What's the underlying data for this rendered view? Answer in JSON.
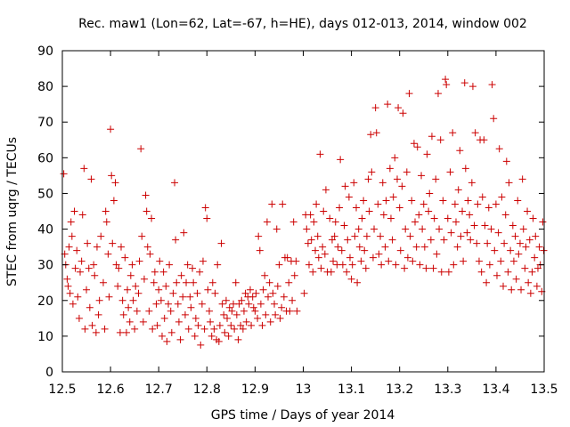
{
  "chart_data": {
    "type": "scatter",
    "title": "Rec. maw1 (Lon=62, Lat=-67, h=HE), days 012-013, 2014, window 002",
    "xlabel": "GPS time / Days of year 2014",
    "ylabel": "STEC from uqrg / TECUs",
    "xlim": [
      12.5,
      13.5
    ],
    "ylim": [
      0,
      90
    ],
    "xticks": [
      "12.5",
      "12.6",
      "12.7",
      "12.8",
      "12.9",
      "13",
      "13.1",
      "13.2",
      "13.3",
      "13.4",
      "13.5"
    ],
    "yticks": [
      "0",
      "10",
      "20",
      "30",
      "40",
      "50",
      "60",
      "70",
      "80",
      "90"
    ],
    "grid": false,
    "marker": "plus",
    "series_color": "#cc0000",
    "points": [
      [
        12.503,
        55.5
      ],
      [
        12.505,
        33
      ],
      [
        12.507,
        30
      ],
      [
        12.51,
        26
      ],
      [
        12.512,
        24
      ],
      [
        12.514,
        35
      ],
      [
        12.516,
        22
      ],
      [
        12.518,
        42
      ],
      [
        12.52,
        38
      ],
      [
        12.522,
        19
      ],
      [
        12.525,
        45
      ],
      [
        12.527,
        29
      ],
      [
        12.53,
        34
      ],
      [
        12.532,
        21
      ],
      [
        12.535,
        15
      ],
      [
        12.537,
        28
      ],
      [
        12.54,
        31
      ],
      [
        12.542,
        44
      ],
      [
        12.545,
        57
      ],
      [
        12.547,
        12
      ],
      [
        12.55,
        23
      ],
      [
        12.552,
        36
      ],
      [
        12.555,
        29
      ],
      [
        12.557,
        18
      ],
      [
        12.56,
        54
      ],
      [
        12.562,
        13
      ],
      [
        12.565,
        30
      ],
      [
        12.567,
        27
      ],
      [
        12.57,
        11
      ],
      [
        12.572,
        35
      ],
      [
        12.575,
        16
      ],
      [
        12.577,
        20
      ],
      [
        12.58,
        38
      ],
      [
        12.585,
        25
      ],
      [
        12.588,
        12
      ],
      [
        12.59,
        45
      ],
      [
        12.592,
        42
      ],
      [
        12.595,
        33
      ],
      [
        12.597,
        21
      ],
      [
        12.6,
        68
      ],
      [
        12.602,
        55
      ],
      [
        12.604,
        36
      ],
      [
        12.607,
        48
      ],
      [
        12.61,
        53
      ],
      [
        12.612,
        30
      ],
      [
        12.615,
        24
      ],
      [
        12.617,
        29
      ],
      [
        12.62,
        11
      ],
      [
        12.622,
        35
      ],
      [
        12.625,
        20
      ],
      [
        12.627,
        16
      ],
      [
        12.63,
        32
      ],
      [
        12.633,
        11
      ],
      [
        12.635,
        23
      ],
      [
        12.637,
        18
      ],
      [
        12.64,
        14
      ],
      [
        12.642,
        27
      ],
      [
        12.645,
        30
      ],
      [
        12.647,
        20
      ],
      [
        12.65,
        12
      ],
      [
        12.652,
        24
      ],
      [
        12.655,
        17
      ],
      [
        12.658,
        22
      ],
      [
        12.66,
        31
      ],
      [
        12.663,
        62.5
      ],
      [
        12.665,
        38
      ],
      [
        12.668,
        14
      ],
      [
        12.67,
        26
      ],
      [
        12.673,
        49.5
      ],
      [
        12.675,
        45
      ],
      [
        12.677,
        35
      ],
      [
        12.68,
        17
      ],
      [
        12.682,
        33
      ],
      [
        12.685,
        43
      ],
      [
        12.687,
        12
      ],
      [
        12.69,
        25
      ],
      [
        12.692,
        28
      ],
      [
        12.695,
        19
      ],
      [
        12.697,
        13
      ],
      [
        12.7,
        23
      ],
      [
        12.702,
        31
      ],
      [
        12.705,
        20
      ],
      [
        12.707,
        10
      ],
      [
        12.71,
        28
      ],
      [
        12.712,
        15
      ],
      [
        12.715,
        24
      ],
      [
        12.717,
        8.5
      ],
      [
        12.72,
        19
      ],
      [
        12.722,
        30
      ],
      [
        12.725,
        17
      ],
      [
        12.727,
        11
      ],
      [
        12.73,
        22
      ],
      [
        12.733,
        53
      ],
      [
        12.735,
        37
      ],
      [
        12.737,
        25
      ],
      [
        12.74,
        19
      ],
      [
        12.742,
        14
      ],
      [
        12.745,
        9
      ],
      [
        12.747,
        27
      ],
      [
        12.75,
        21
      ],
      [
        12.752,
        39
      ],
      [
        12.755,
        16
      ],
      [
        12.757,
        25
      ],
      [
        12.76,
        30
      ],
      [
        12.762,
        12
      ],
      [
        12.765,
        21
      ],
      [
        12.767,
        18
      ],
      [
        12.77,
        29
      ],
      [
        12.772,
        25
      ],
      [
        12.775,
        10
      ],
      [
        12.777,
        15
      ],
      [
        12.78,
        22
      ],
      [
        12.782,
        13
      ],
      [
        12.785,
        28
      ],
      [
        12.787,
        7.5
      ],
      [
        12.79,
        19
      ],
      [
        12.792,
        31
      ],
      [
        12.795,
        12
      ],
      [
        12.797,
        46
      ],
      [
        12.8,
        43
      ],
      [
        12.802,
        23
      ],
      [
        12.805,
        17
      ],
      [
        12.807,
        14
      ],
      [
        12.81,
        10
      ],
      [
        12.812,
        25
      ],
      [
        12.815,
        12
      ],
      [
        12.817,
        22
      ],
      [
        12.82,
        9
      ],
      [
        12.822,
        30
      ],
      [
        12.825,
        8.5
      ],
      [
        12.827,
        13
      ],
      [
        12.83,
        36
      ],
      [
        12.832,
        19
      ],
      [
        12.835,
        16
      ],
      [
        12.837,
        11
      ],
      [
        12.84,
        20
      ],
      [
        12.842,
        15
      ],
      [
        12.845,
        10
      ],
      [
        12.847,
        18
      ],
      [
        12.85,
        13
      ],
      [
        12.852,
        17
      ],
      [
        12.855,
        19
      ],
      [
        12.857,
        12
      ],
      [
        12.86,
        25
      ],
      [
        12.862,
        16
      ],
      [
        12.865,
        9
      ],
      [
        12.867,
        19
      ],
      [
        12.87,
        13
      ],
      [
        12.872,
        20
      ],
      [
        12.875,
        12
      ],
      [
        12.877,
        17
      ],
      [
        12.88,
        22
      ],
      [
        12.882,
        14
      ],
      [
        12.885,
        21
      ],
      [
        12.887,
        19
      ],
      [
        12.89,
        23
      ],
      [
        12.892,
        13
      ],
      [
        12.895,
        21
      ],
      [
        12.897,
        18
      ],
      [
        12.9,
        17
      ],
      [
        12.902,
        22
      ],
      [
        12.905,
        15
      ],
      [
        12.907,
        38
      ],
      [
        12.91,
        34
      ],
      [
        12.912,
        19
      ],
      [
        12.915,
        13
      ],
      [
        12.917,
        23
      ],
      [
        12.92,
        27
      ],
      [
        12.922,
        16
      ],
      [
        12.925,
        42
      ],
      [
        12.927,
        21
      ],
      [
        12.93,
        25
      ],
      [
        12.932,
        14
      ],
      [
        12.935,
        47
      ],
      [
        12.937,
        22
      ],
      [
        12.94,
        19
      ],
      [
        12.942,
        16
      ],
      [
        12.945,
        40
      ],
      [
        12.947,
        24
      ],
      [
        12.95,
        30
      ],
      [
        12.952,
        15
      ],
      [
        12.955,
        18
      ],
      [
        12.957,
        47
      ],
      [
        12.96,
        21
      ],
      [
        12.962,
        32
      ],
      [
        12.965,
        17
      ],
      [
        12.967,
        32
      ],
      [
        12.97,
        25
      ],
      [
        12.972,
        17
      ],
      [
        12.975,
        31
      ],
      [
        12.977,
        20
      ],
      [
        12.98,
        42
      ],
      [
        12.982,
        27
      ],
      [
        12.985,
        31
      ],
      [
        12.987,
        17
      ],
      [
        13.002,
        22
      ],
      [
        13.005,
        44
      ],
      [
        13.007,
        40
      ],
      [
        13.01,
        36
      ],
      [
        13.012,
        30
      ],
      [
        13.015,
        44
      ],
      [
        13.017,
        37
      ],
      [
        13.02,
        28
      ],
      [
        13.022,
        42
      ],
      [
        13.025,
        34
      ],
      [
        13.027,
        47
      ],
      [
        13.03,
        38
      ],
      [
        13.032,
        32
      ],
      [
        13.035,
        61
      ],
      [
        13.037,
        29
      ],
      [
        13.04,
        35
      ],
      [
        13.042,
        45
      ],
      [
        13.045,
        33
      ],
      [
        13.047,
        51
      ],
      [
        13.05,
        28
      ],
      [
        13.055,
        43
      ],
      [
        13.058,
        28
      ],
      [
        13.06,
        37
      ],
      [
        13.062,
        31
      ],
      [
        13.065,
        38
      ],
      [
        13.067,
        42
      ],
      [
        13.07,
        30
      ],
      [
        13.072,
        35
      ],
      [
        13.075,
        46
      ],
      [
        13.077,
        59.5
      ],
      [
        13.08,
        34
      ],
      [
        13.082,
        30
      ],
      [
        13.085,
        41
      ],
      [
        13.087,
        52
      ],
      [
        13.09,
        28
      ],
      [
        13.092,
        37
      ],
      [
        13.095,
        49
      ],
      [
        13.097,
        32
      ],
      [
        13.1,
        26
      ],
      [
        13.102,
        30
      ],
      [
        13.105,
        53
      ],
      [
        13.107,
        38
      ],
      [
        13.11,
        46
      ],
      [
        13.112,
        25
      ],
      [
        13.115,
        40
      ],
      [
        13.117,
        35
      ],
      [
        13.12,
        31
      ],
      [
        13.122,
        43
      ],
      [
        13.125,
        48
      ],
      [
        13.127,
        34
      ],
      [
        13.13,
        29
      ],
      [
        13.132,
        38
      ],
      [
        13.135,
        54
      ],
      [
        13.137,
        45
      ],
      [
        13.14,
        66.5
      ],
      [
        13.142,
        56
      ],
      [
        13.145,
        32
      ],
      [
        13.147,
        40
      ],
      [
        13.15,
        74
      ],
      [
        13.152,
        67
      ],
      [
        13.155,
        47
      ],
      [
        13.157,
        33
      ],
      [
        13.16,
        38
      ],
      [
        13.162,
        30
      ],
      [
        13.165,
        53
      ],
      [
        13.167,
        44
      ],
      [
        13.17,
        35
      ],
      [
        13.172,
        48
      ],
      [
        13.175,
        75
      ],
      [
        13.177,
        31
      ],
      [
        13.18,
        57
      ],
      [
        13.182,
        43
      ],
      [
        13.185,
        37
      ],
      [
        13.187,
        49
      ],
      [
        13.19,
        60
      ],
      [
        13.192,
        30
      ],
      [
        13.195,
        54
      ],
      [
        13.197,
        74
      ],
      [
        13.2,
        46
      ],
      [
        13.202,
        34
      ],
      [
        13.205,
        52
      ],
      [
        13.207,
        72.5
      ],
      [
        13.21,
        29
      ],
      [
        13.212,
        40
      ],
      [
        13.215,
        56
      ],
      [
        13.217,
        32
      ],
      [
        13.22,
        78
      ],
      [
        13.222,
        38
      ],
      [
        13.225,
        48
      ],
      [
        13.227,
        31
      ],
      [
        13.23,
        64
      ],
      [
        13.232,
        42
      ],
      [
        13.235,
        35
      ],
      [
        13.237,
        63
      ],
      [
        13.24,
        44
      ],
      [
        13.242,
        30
      ],
      [
        13.245,
        55
      ],
      [
        13.247,
        40
      ],
      [
        13.25,
        47
      ],
      [
        13.252,
        35
      ],
      [
        13.255,
        29
      ],
      [
        13.257,
        61
      ],
      [
        13.26,
        45
      ],
      [
        13.262,
        50
      ],
      [
        13.265,
        37
      ],
      [
        13.267,
        66
      ],
      [
        13.27,
        29
      ],
      [
        13.272,
        43
      ],
      [
        13.275,
        54
      ],
      [
        13.277,
        33
      ],
      [
        13.28,
        78
      ],
      [
        13.282,
        40
      ],
      [
        13.285,
        65
      ],
      [
        13.287,
        28
      ],
      [
        13.29,
        48
      ],
      [
        13.292,
        37
      ],
      [
        13.295,
        82
      ],
      [
        13.297,
        80.5
      ],
      [
        13.3,
        43
      ],
      [
        13.302,
        28
      ],
      [
        13.305,
        56
      ],
      [
        13.307,
        39
      ],
      [
        13.31,
        67
      ],
      [
        13.312,
        30
      ],
      [
        13.315,
        47
      ],
      [
        13.317,
        42
      ],
      [
        13.32,
        35
      ],
      [
        13.322,
        51
      ],
      [
        13.325,
        62
      ],
      [
        13.327,
        38
      ],
      [
        13.33,
        45
      ],
      [
        13.332,
        31
      ],
      [
        13.335,
        81
      ],
      [
        13.337,
        57
      ],
      [
        13.34,
        39
      ],
      [
        13.342,
        48
      ],
      [
        13.345,
        44
      ],
      [
        13.347,
        37
      ],
      [
        13.35,
        53
      ],
      [
        13.352,
        80
      ],
      [
        13.355,
        41
      ],
      [
        13.357,
        67
      ],
      [
        13.36,
        36
      ],
      [
        13.362,
        47
      ],
      [
        13.365,
        31
      ],
      [
        13.367,
        65
      ],
      [
        13.37,
        28
      ],
      [
        13.372,
        49
      ],
      [
        13.375,
        65
      ],
      [
        13.377,
        41
      ],
      [
        13.38,
        25
      ],
      [
        13.382,
        36
      ],
      [
        13.385,
        46
      ],
      [
        13.387,
        30
      ],
      [
        13.39,
        40
      ],
      [
        13.392,
        80.5
      ],
      [
        13.395,
        71
      ],
      [
        13.397,
        34
      ],
      [
        13.4,
        47
      ],
      [
        13.402,
        27
      ],
      [
        13.405,
        39
      ],
      [
        13.407,
        62.5
      ],
      [
        13.41,
        31
      ],
      [
        13.412,
        49
      ],
      [
        13.415,
        24
      ],
      [
        13.417,
        36
      ],
      [
        13.42,
        44
      ],
      [
        13.422,
        59
      ],
      [
        13.425,
        28
      ],
      [
        13.427,
        53
      ],
      [
        13.43,
        34
      ],
      [
        13.432,
        23
      ],
      [
        13.435,
        41
      ],
      [
        13.437,
        31
      ],
      [
        13.44,
        38
      ],
      [
        13.442,
        26
      ],
      [
        13.445,
        48
      ],
      [
        13.447,
        33
      ],
      [
        13.45,
        36
      ],
      [
        13.452,
        23
      ],
      [
        13.455,
        54
      ],
      [
        13.457,
        40
      ],
      [
        13.46,
        29
      ],
      [
        13.462,
        35
      ],
      [
        13.465,
        45
      ],
      [
        13.467,
        25
      ],
      [
        13.47,
        37
      ],
      [
        13.472,
        22
      ],
      [
        13.475,
        28
      ],
      [
        13.477,
        43
      ],
      [
        13.48,
        32
      ],
      [
        13.482,
        38
      ],
      [
        13.485,
        24
      ],
      [
        13.487,
        29
      ],
      [
        13.49,
        35
      ],
      [
        13.492,
        30
      ],
      [
        13.495,
        22.5
      ],
      [
        13.497,
        42
      ],
      [
        13.499,
        34
      ]
    ]
  }
}
